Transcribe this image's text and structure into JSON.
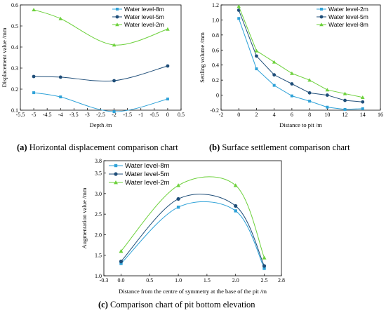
{
  "colors": {
    "water_level_8m": "#2fa2d8",
    "water_level_5m": "#1f4e79",
    "water_level_2m": "#6dd13c"
  },
  "captions": [
    {
      "letter": "(a)",
      "text": " Horizontal displacement comparison chart"
    },
    {
      "letter": "(b)",
      "text": " Surface settlement comparison chart"
    },
    {
      "letter": "(c)",
      "text": " Comparison chart of pit bottom elevation"
    }
  ],
  "chart_data": [
    {
      "type": "line",
      "xlabel": "Depth /m",
      "ylabel": "Displacement value /mm",
      "xlim": [
        -5.5,
        0.5
      ],
      "ylim": [
        0.1,
        0.6
      ],
      "xticks": [
        "-5.5",
        "-5",
        "-4.5",
        "-4",
        "-3.5",
        "-3",
        "-2.5",
        "-2",
        "-1.5",
        "-1",
        "-0.5",
        "0",
        "0.5"
      ],
      "yticks": [
        "0.1",
        "0.2",
        "0.3",
        "0.4",
        "0.5",
        "0.6"
      ],
      "legend_position": "top-right",
      "x": [
        -5,
        -4,
        -2,
        0
      ],
      "series": [
        {
          "name": "Water level-8m",
          "values": [
            0.183,
            0.163,
            0.093,
            0.153
          ],
          "marker": "square",
          "color_key": "water_level_8m"
        },
        {
          "name": "Water level-5m",
          "values": [
            0.26,
            0.257,
            0.24,
            0.31
          ],
          "marker": "circle",
          "color_key": "water_level_5m"
        },
        {
          "name": "Water level-2m",
          "values": [
            0.577,
            0.535,
            0.41,
            0.485
          ],
          "marker": "triangle",
          "color_key": "water_level_2m"
        }
      ]
    },
    {
      "type": "line",
      "xlabel": "Distance to pit /m",
      "ylabel": "Settling volume /mm",
      "xlim": [
        -2,
        16
      ],
      "ylim": [
        -0.2,
        1.2
      ],
      "xticks": [
        "-2",
        "0",
        "2",
        "4",
        "6",
        "8",
        "10",
        "12",
        "14",
        "16"
      ],
      "yticks": [
        "-0.2",
        "0",
        "0.2",
        "0.4",
        "0.6",
        "0.8",
        "1.0",
        "1.2"
      ],
      "legend_position": "top-right",
      "x": [
        0,
        2,
        4,
        6,
        8,
        10,
        12,
        14
      ],
      "series": [
        {
          "name": "Water level-2m",
          "values": [
            1.02,
            0.35,
            0.13,
            -0.01,
            -0.08,
            -0.16,
            -0.19,
            -0.18
          ],
          "marker": "square",
          "color_key": "water_level_8m"
        },
        {
          "name": "Water level-5m",
          "values": [
            1.13,
            0.52,
            0.27,
            0.15,
            0.03,
            0.0,
            -0.07,
            -0.09
          ],
          "marker": "circle",
          "color_key": "water_level_5m"
        },
        {
          "name": "Water level-8m",
          "values": [
            1.18,
            0.59,
            0.44,
            0.29,
            0.2,
            0.07,
            0.02,
            -0.03
          ],
          "marker": "triangle",
          "color_key": "water_level_2m"
        }
      ]
    },
    {
      "type": "line",
      "xlabel": "Distance from the centre of symmetry at the base of the pit /m",
      "ylabel": "Augmentation value /mm",
      "xlim": [
        -0.3,
        2.8
      ],
      "ylim": [
        1.0,
        3.8
      ],
      "xticks": [
        "-0.3",
        "0.0",
        "0.5",
        "1.0",
        "1.5",
        "2.0",
        "2.5",
        "2.8"
      ],
      "yticks": [
        "1.0",
        "1.5",
        "2.0",
        "2.5",
        "3.0",
        "3.5",
        "3.8"
      ],
      "legend_position": "top-left",
      "x": [
        0,
        1,
        2,
        2.5
      ],
      "series": [
        {
          "name": "Water level-8m",
          "values": [
            1.3,
            2.67,
            2.58,
            1.18
          ],
          "marker": "square",
          "color_key": "water_level_8m"
        },
        {
          "name": "Water level-5m",
          "values": [
            1.35,
            2.87,
            2.7,
            1.24
          ],
          "marker": "circle",
          "color_key": "water_level_5m"
        },
        {
          "name": "Water level-2m",
          "values": [
            1.6,
            3.2,
            3.2,
            1.44
          ],
          "marker": "triangle",
          "color_key": "water_level_2m"
        }
      ]
    }
  ]
}
